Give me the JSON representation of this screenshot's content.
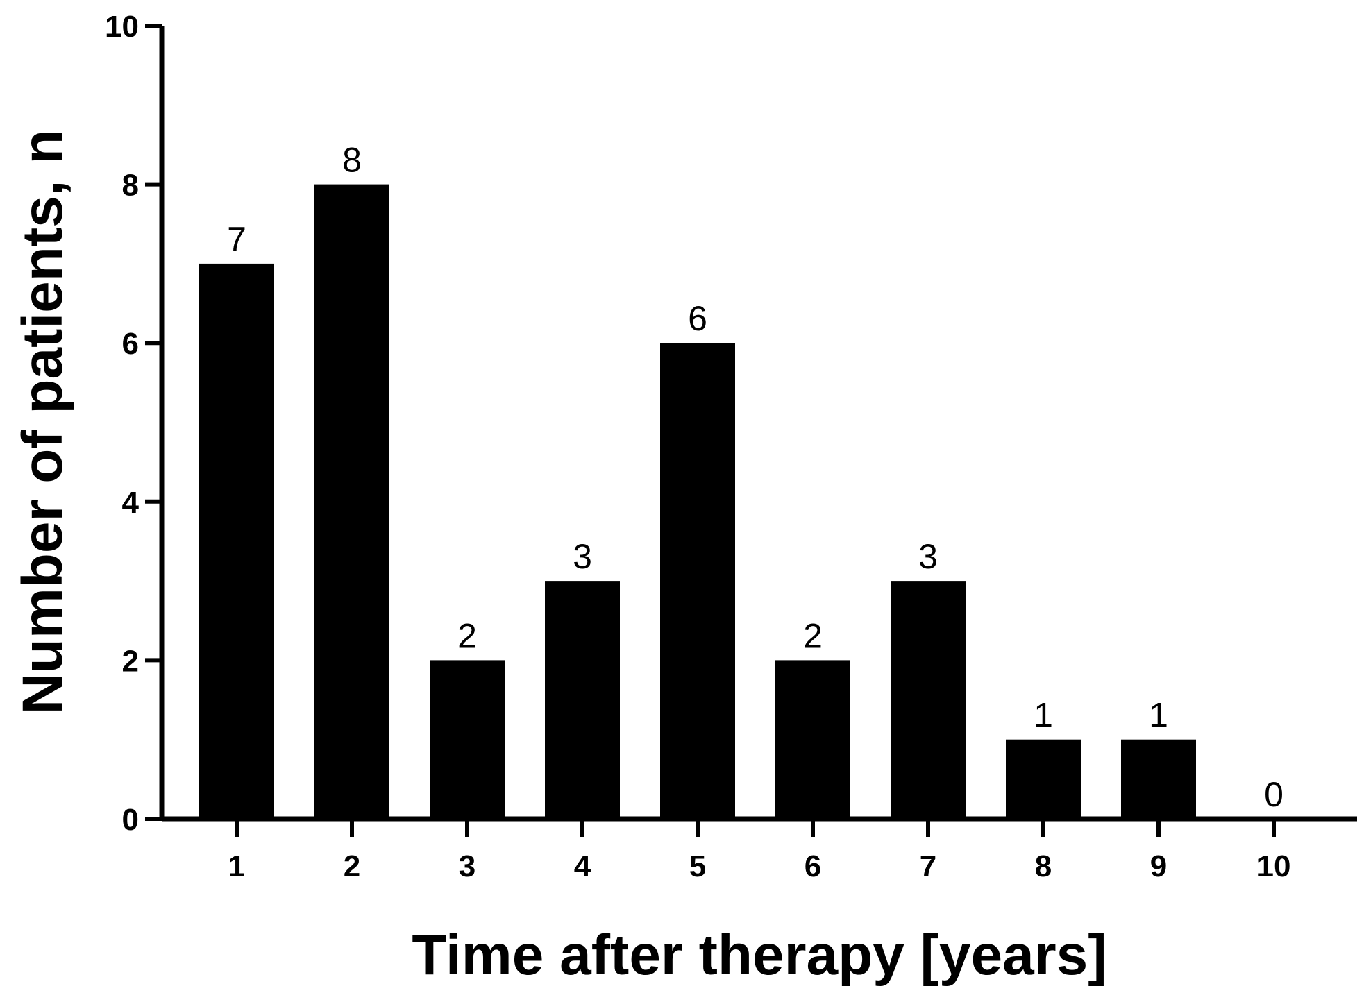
{
  "chart_data": {
    "type": "bar",
    "title": "",
    "xlabel": "Time after therapy [years]",
    "ylabel": "Number of patients, n",
    "categories": [
      "1",
      "2",
      "3",
      "4",
      "5",
      "6",
      "7",
      "8",
      "9",
      "10"
    ],
    "values": [
      7,
      8,
      2,
      3,
      6,
      2,
      3,
      1,
      1,
      0
    ],
    "data_labels": [
      "7",
      "8",
      "2",
      "3",
      "6",
      "2",
      "3",
      "1",
      "1",
      "0"
    ],
    "yticks": [
      0,
      2,
      4,
      6,
      8,
      10
    ],
    "ytick_labels": [
      "0",
      "2",
      "4",
      "6",
      "8",
      "10"
    ],
    "ylim": [
      0,
      10
    ],
    "grid": false,
    "legend": "none",
    "bar_color": "#000000"
  }
}
